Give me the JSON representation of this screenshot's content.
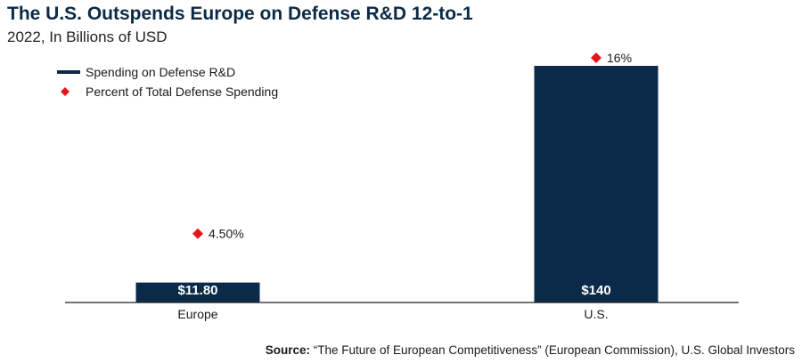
{
  "chart_data": {
    "type": "bar",
    "title": "The U.S. Outspends Europe on Defense R&D 12-to-1",
    "subtitle": "2022, In Billions of USD",
    "categories": [
      "Europe",
      "U.S."
    ],
    "series": [
      {
        "name": "Spending on Defense R&D",
        "kind": "bar",
        "values": [
          11.8,
          140
        ],
        "labels": [
          "$11.80",
          "$140"
        ],
        "color": "#0b2a4a"
      },
      {
        "name": "Percent of Total Defense Spending",
        "kind": "marker",
        "values": [
          4.5,
          16
        ],
        "labels": [
          "4.50%",
          "16%"
        ],
        "color": "#e8141c"
      }
    ],
    "ylim": [
      0,
      140
    ],
    "secondary_ylim": [
      0,
      16
    ],
    "grid": false,
    "legend_position": "top-left",
    "xlabel": "",
    "ylabel": ""
  },
  "source": {
    "label": "Source:",
    "text": "“The Future of European Competitiveness” (European Commission), U.S. Global Investors"
  }
}
